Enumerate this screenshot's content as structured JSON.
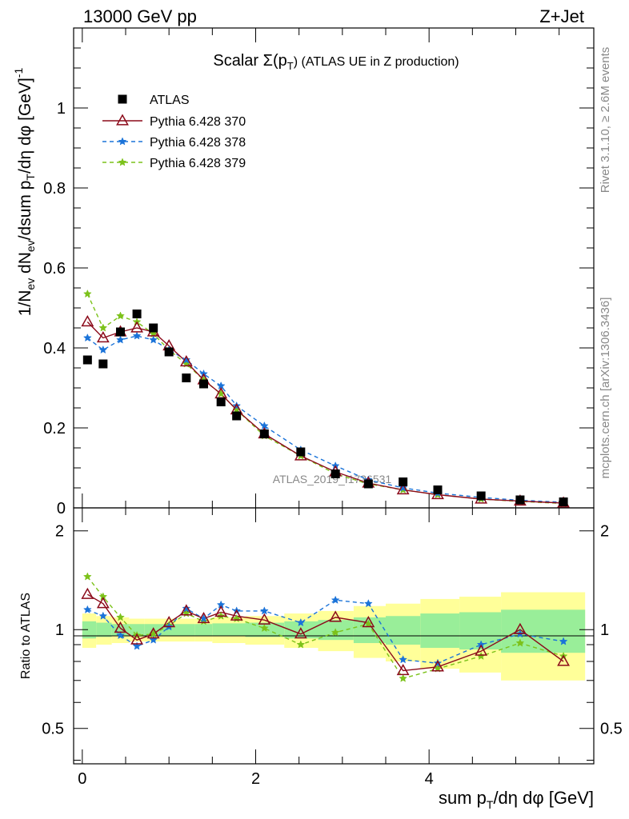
{
  "header": {
    "left": "13000 GeV pp",
    "right": "Z+Jet"
  },
  "side_text": {
    "rivet": "Rivet 3.1.10, ≥ 2.6M events",
    "mcplots": "mcplots.cern.ch [arXiv:1306.3436]"
  },
  "chart_data": [
    {
      "type": "scatter",
      "panel": "main",
      "title": "Scalar Σ(pT) (ATLAS UE in Z production)",
      "title_parts": {
        "pre": "Scalar Σ(p",
        "sub": "T",
        "post": ") (ATLAS UE in Z production)"
      },
      "ylabel": "1/Nev dNev/dsum pT/dη dφ [GeV]^-1",
      "xlabel": "sum pT/dη dφ [GeV]",
      "watermark": "ATLAS_2019_I1736531",
      "xlim": [
        -0.1,
        5.9
      ],
      "ylim": [
        0,
        1.2
      ],
      "yticks": [
        "0",
        "0.2",
        "0.4",
        "0.6",
        "0.8",
        "1"
      ],
      "xticks": [
        "0",
        "2",
        "4"
      ],
      "grid": false,
      "legend_position": "top-left",
      "series": [
        {
          "name": "ATLAS",
          "style": "black-square",
          "color": "#000000",
          "x": [
            0.06,
            0.24,
            0.44,
            0.63,
            0.82,
            1.0,
            1.2,
            1.4,
            1.6,
            1.78,
            2.1,
            2.52,
            2.92,
            3.3,
            3.7,
            4.1,
            4.6,
            5.05,
            5.55
          ],
          "y": [
            0.37,
            0.36,
            0.44,
            0.485,
            0.45,
            0.39,
            0.325,
            0.31,
            0.265,
            0.23,
            0.185,
            0.14,
            0.085,
            0.06,
            0.065,
            0.045,
            0.03,
            0.02,
            0.015
          ]
        },
        {
          "name": "Pythia 6.428 370",
          "style": "triangle-solid",
          "color": "#8b0a1a",
          "x": [
            0.06,
            0.24,
            0.44,
            0.63,
            0.82,
            1.0,
            1.2,
            1.4,
            1.6,
            1.78,
            2.1,
            2.52,
            2.92,
            3.3,
            3.7,
            4.1,
            4.6,
            5.05,
            5.55
          ],
          "y": [
            0.465,
            0.425,
            0.44,
            0.45,
            0.44,
            0.405,
            0.365,
            0.32,
            0.285,
            0.245,
            0.185,
            0.13,
            0.09,
            0.062,
            0.045,
            0.033,
            0.022,
            0.017,
            0.012
          ]
        },
        {
          "name": "Pythia 6.428 378",
          "style": "star-dashed",
          "color": "#1a73d9",
          "x": [
            0.06,
            0.24,
            0.44,
            0.63,
            0.82,
            1.0,
            1.2,
            1.4,
            1.6,
            1.78,
            2.1,
            2.52,
            2.92,
            3.3,
            3.7,
            4.1,
            4.6,
            5.05,
            5.55
          ],
          "y": [
            0.425,
            0.395,
            0.42,
            0.43,
            0.42,
            0.395,
            0.37,
            0.335,
            0.305,
            0.255,
            0.205,
            0.145,
            0.105,
            0.07,
            0.05,
            0.037,
            0.026,
            0.019,
            0.014
          ]
        },
        {
          "name": "Pythia 6.428 379",
          "style": "star-dashed",
          "color": "#7cc21a",
          "x": [
            0.06,
            0.24,
            0.44,
            0.63,
            0.82,
            1.0,
            1.2,
            1.4,
            1.6,
            1.78,
            2.1,
            2.52,
            2.92,
            3.3,
            3.7,
            4.1,
            4.6,
            5.05,
            5.55
          ],
          "y": [
            0.535,
            0.45,
            0.48,
            0.465,
            0.435,
            0.395,
            0.36,
            0.32,
            0.285,
            0.245,
            0.18,
            0.13,
            0.085,
            0.06,
            0.045,
            0.033,
            0.022,
            0.016,
            0.011
          ]
        }
      ]
    },
    {
      "type": "line",
      "panel": "ratio",
      "ylabel": "Ratio to ATLAS",
      "xlim": [
        -0.1,
        5.9
      ],
      "ylim": [
        0.39,
        2.35
      ],
      "yticks": [
        "0.5",
        "1",
        "2"
      ],
      "reference_line": 1,
      "uncertainty_bands": {
        "x_edges": [
          0.0,
          0.16,
          0.34,
          0.54,
          0.72,
          0.92,
          1.1,
          1.3,
          1.5,
          1.7,
          1.88,
          2.33,
          2.72,
          3.13,
          3.5,
          3.9,
          4.35,
          4.83,
          5.8
        ],
        "yellow_half_width": [
          0.12,
          0.1,
          0.09,
          0.08,
          0.08,
          0.08,
          0.08,
          0.08,
          0.09,
          0.09,
          0.1,
          0.12,
          0.14,
          0.18,
          0.2,
          0.24,
          0.26,
          0.3
        ],
        "green_half_width": [
          0.06,
          0.05,
          0.04,
          0.04,
          0.04,
          0.04,
          0.04,
          0.04,
          0.045,
          0.045,
          0.05,
          0.06,
          0.07,
          0.09,
          0.1,
          0.12,
          0.13,
          0.15
        ]
      },
      "series": [
        {
          "name": "Pythia 6.428 370",
          "color": "#8b0a1a",
          "x": [
            0.06,
            0.24,
            0.44,
            0.63,
            0.82,
            1.0,
            1.2,
            1.4,
            1.6,
            1.78,
            2.1,
            2.52,
            2.92,
            3.3,
            3.7,
            4.1,
            4.6,
            5.05,
            5.55
          ],
          "y": [
            1.28,
            1.2,
            1.01,
            0.93,
            0.97,
            1.05,
            1.14,
            1.08,
            1.13,
            1.1,
            1.07,
            0.97,
            1.09,
            1.05,
            0.75,
            0.77,
            0.86,
            1.0,
            0.8
          ]
        },
        {
          "name": "Pythia 6.428 378",
          "color": "#1a73d9",
          "x": [
            0.06,
            0.24,
            0.44,
            0.63,
            0.82,
            1.0,
            1.2,
            1.4,
            1.6,
            1.78,
            2.1,
            2.52,
            2.92,
            3.3,
            3.7,
            4.1,
            4.6,
            5.05,
            5.55
          ],
          "y": [
            1.15,
            1.1,
            0.96,
            0.89,
            0.93,
            1.02,
            1.16,
            1.08,
            1.19,
            1.14,
            1.14,
            1.05,
            1.23,
            1.2,
            0.81,
            0.79,
            0.9,
            0.97,
            0.92
          ]
        },
        {
          "name": "Pythia 6.428 379",
          "color": "#7cc21a",
          "x": [
            0.06,
            0.24,
            0.44,
            0.63,
            0.82,
            1.0,
            1.2,
            1.4,
            1.6,
            1.78,
            2.1,
            2.52,
            2.92,
            3.3,
            3.7,
            4.1,
            4.6,
            5.05,
            5.55
          ],
          "y": [
            1.45,
            1.26,
            1.09,
            0.96,
            0.97,
            1.03,
            1.12,
            1.06,
            1.1,
            1.08,
            1.01,
            0.9,
            0.98,
            1.04,
            0.71,
            0.76,
            0.83,
            0.91,
            0.83
          ]
        }
      ]
    }
  ]
}
